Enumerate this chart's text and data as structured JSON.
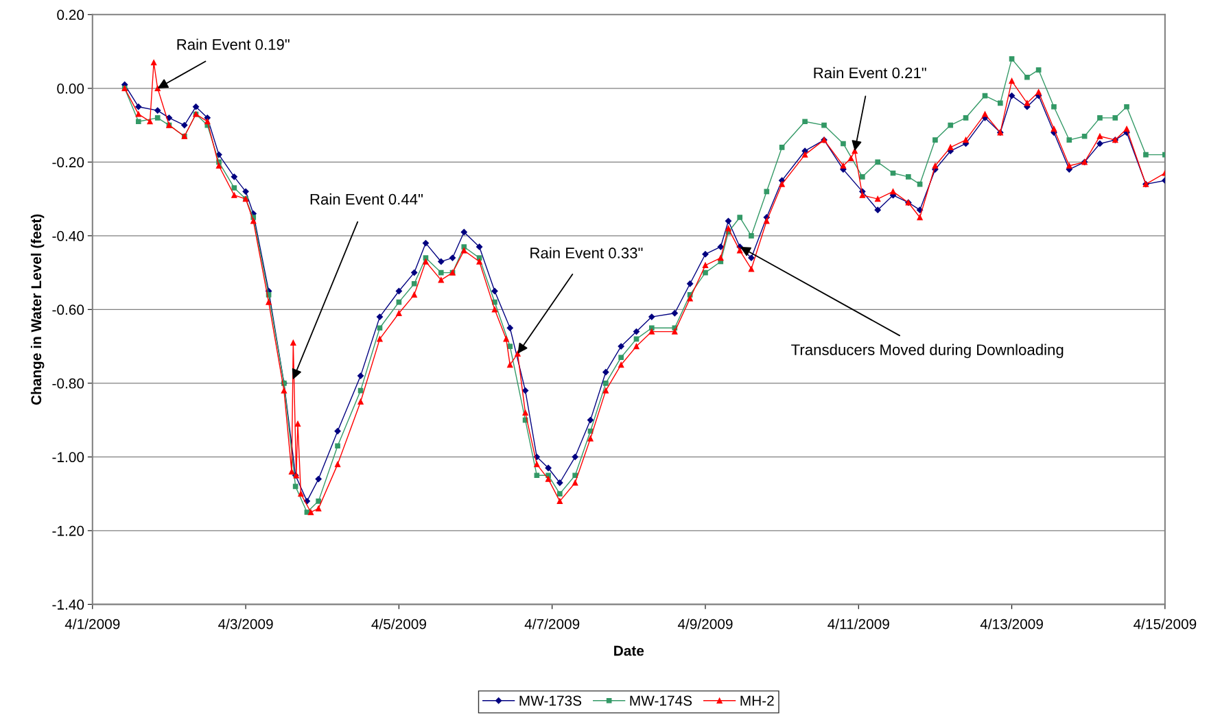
{
  "chart_data": {
    "type": "line",
    "xlabel": "Date",
    "ylabel": "Change in Water Level (feet)",
    "xlim": [
      "2009-04-01",
      "2009-04-15"
    ],
    "xticks": [
      {
        "value": "2009-04-01",
        "label": "4/1/2009"
      },
      {
        "value": "2009-04-03",
        "label": "4/3/2009"
      },
      {
        "value": "2009-04-05",
        "label": "4/5/2009"
      },
      {
        "value": "2009-04-07",
        "label": "4/7/2009"
      },
      {
        "value": "2009-04-09",
        "label": "4/9/2009"
      },
      {
        "value": "2009-04-11",
        "label": "4/11/2009"
      },
      {
        "value": "2009-04-13",
        "label": "4/13/2009"
      },
      {
        "value": "2009-04-15",
        "label": "4/15/2009"
      }
    ],
    "ylim": [
      -1.4,
      0.2
    ],
    "yticks": [
      {
        "value": 0.2,
        "label": "0.20"
      },
      {
        "value": 0.0,
        "label": "0.00"
      },
      {
        "value": -0.2,
        "label": "-0.20"
      },
      {
        "value": -0.4,
        "label": "-0.40"
      },
      {
        "value": -0.6,
        "label": "-0.60"
      },
      {
        "value": -0.8,
        "label": "-0.80"
      },
      {
        "value": -1.0,
        "label": "-1.00"
      },
      {
        "value": -1.2,
        "label": "-1.20"
      },
      {
        "value": -1.4,
        "label": "-1.40"
      }
    ],
    "grid": "y",
    "legend": "bottom",
    "line_style": "solid",
    "x": [
      "2009-04-01T10:05",
      "2009-04-01T14:24",
      "2009-04-01T20:24",
      "2009-04-02T00:00",
      "2009-04-02T04:48",
      "2009-04-02T08:24",
      "2009-04-02T12:00",
      "2009-04-02T15:36",
      "2009-04-02T20:24",
      "2009-04-03T00:00",
      "2009-04-03T02:24",
      "2009-04-03T07:12",
      "2009-04-03T12:00",
      "2009-04-03T15:36",
      "2009-04-03T19:12",
      "2009-04-03T22:48",
      "2009-04-04T04:48",
      "2009-04-04T12:00",
      "2009-04-04T18:00",
      "2009-04-05T00:00",
      "2009-04-05T04:48",
      "2009-04-05T08:24",
      "2009-04-05T13:12",
      "2009-04-05T16:48",
      "2009-04-05T20:24",
      "2009-04-06T01:12",
      "2009-04-06T06:00",
      "2009-04-06T10:48",
      "2009-04-06T15:36",
      "2009-04-06T19:12",
      "2009-04-06T22:48",
      "2009-04-07T02:24",
      "2009-04-07T07:12",
      "2009-04-07T12:00",
      "2009-04-07T16:48",
      "2009-04-07T21:36",
      "2009-04-08T02:24",
      "2009-04-08T07:12",
      "2009-04-08T14:24",
      "2009-04-08T19:12",
      "2009-04-09T00:00",
      "2009-04-09T04:48",
      "2009-04-09T07:12",
      "2009-04-09T10:48",
      "2009-04-09T14:24",
      "2009-04-09T19:12",
      "2009-04-10T00:00",
      "2009-04-10T07:12",
      "2009-04-10T13:12",
      "2009-04-10T19:12",
      "2009-04-11T01:12",
      "2009-04-11T06:00",
      "2009-04-11T10:48",
      "2009-04-11T15:36",
      "2009-04-11T19:12",
      "2009-04-12T00:00",
      "2009-04-12T04:48",
      "2009-04-12T09:36",
      "2009-04-12T15:36",
      "2009-04-12T20:24",
      "2009-04-13T00:00",
      "2009-04-13T04:48",
      "2009-04-13T08:24",
      "2009-04-13T13:12",
      "2009-04-13T18:00",
      "2009-04-13T22:48",
      "2009-04-14T03:36",
      "2009-04-14T08:24",
      "2009-04-14T12:00",
      "2009-04-14T18:00",
      "2009-04-15T00:00"
    ],
    "series": [
      {
        "name": "MW-173S",
        "color": "#000080",
        "marker": "diamond",
        "values": [
          0.01,
          -0.05,
          -0.06,
          -0.08,
          -0.1,
          -0.05,
          -0.08,
          -0.18,
          -0.24,
          -0.28,
          -0.34,
          -0.55,
          -0.8,
          -1.05,
          -1.12,
          -1.06,
          -0.93,
          -0.78,
          -0.62,
          -0.55,
          -0.5,
          -0.42,
          -0.47,
          -0.46,
          -0.39,
          -0.43,
          -0.55,
          -0.65,
          -0.82,
          -1.0,
          -1.03,
          -1.07,
          -1.0,
          -0.9,
          -0.77,
          -0.7,
          -0.66,
          -0.62,
          -0.61,
          -0.53,
          -0.45,
          -0.43,
          -0.36,
          -0.43,
          -0.46,
          -0.35,
          -0.25,
          -0.17,
          -0.14,
          -0.22,
          -0.28,
          -0.33,
          -0.29,
          -0.31,
          -0.33,
          -0.22,
          -0.17,
          -0.15,
          -0.08,
          -0.12,
          -0.02,
          -0.05,
          -0.02,
          -0.12,
          -0.22,
          -0.2,
          -0.15,
          -0.14,
          -0.12,
          -0.26,
          -0.25
        ]
      },
      {
        "name": "MW-174S",
        "color": "#339966",
        "marker": "square",
        "values": [
          0.0,
          -0.09,
          -0.08,
          -0.1,
          -0.13,
          -0.07,
          -0.1,
          -0.2,
          -0.27,
          -0.3,
          -0.35,
          -0.56,
          -0.8,
          -1.08,
          -1.15,
          -1.12,
          -0.97,
          -0.82,
          -0.65,
          -0.58,
          -0.53,
          -0.46,
          -0.5,
          -0.5,
          -0.43,
          -0.46,
          -0.58,
          -0.7,
          -0.9,
          -1.05,
          -1.05,
          -1.1,
          -1.05,
          -0.93,
          -0.8,
          -0.73,
          -0.68,
          -0.65,
          -0.65,
          -0.56,
          -0.5,
          -0.47,
          -0.39,
          -0.35,
          -0.4,
          -0.28,
          -0.16,
          -0.09,
          -0.1,
          -0.15,
          -0.24,
          -0.2,
          -0.23,
          -0.24,
          -0.26,
          -0.14,
          -0.1,
          -0.08,
          -0.02,
          -0.04,
          0.08,
          0.03,
          0.05,
          -0.05,
          -0.14,
          -0.13,
          -0.08,
          -0.08,
          -0.05,
          -0.18,
          -0.18
        ]
      },
      {
        "name": "MH-2",
        "color": "#ff0000",
        "marker": "triangle",
        "x": [
          "2009-04-01T10:05",
          "2009-04-01T14:24",
          "2009-04-01T18:00",
          "2009-04-01T19:12",
          "2009-04-01T20:24",
          "2009-04-02T00:00",
          "2009-04-02T04:48",
          "2009-04-02T08:24",
          "2009-04-02T12:00",
          "2009-04-02T15:36",
          "2009-04-02T20:24",
          "2009-04-03T00:00",
          "2009-04-03T02:24",
          "2009-04-03T07:12",
          "2009-04-03T12:00",
          "2009-04-03T14:24",
          "2009-04-03T14:53",
          "2009-04-03T15:50",
          "2009-04-03T16:19",
          "2009-04-03T17:17",
          "2009-04-03T20:24",
          "2009-04-03T22:48",
          "2009-04-04T04:48",
          "2009-04-04T12:00",
          "2009-04-04T18:00",
          "2009-04-05T00:00",
          "2009-04-05T04:48",
          "2009-04-05T08:24",
          "2009-04-05T13:12",
          "2009-04-05T16:48",
          "2009-04-05T20:24",
          "2009-04-06T01:12",
          "2009-04-06T06:00",
          "2009-04-06T09:36",
          "2009-04-06T10:48",
          "2009-04-06T13:12",
          "2009-04-06T15:36",
          "2009-04-06T19:12",
          "2009-04-06T22:48",
          "2009-04-07T02:24",
          "2009-04-07T07:12",
          "2009-04-07T12:00",
          "2009-04-07T16:48",
          "2009-04-07T21:36",
          "2009-04-08T02:24",
          "2009-04-08T07:12",
          "2009-04-08T14:24",
          "2009-04-08T19:12",
          "2009-04-09T00:00",
          "2009-04-09T04:48",
          "2009-04-09T07:12",
          "2009-04-09T10:48",
          "2009-04-09T14:24",
          "2009-04-09T19:12",
          "2009-04-10T00:00",
          "2009-04-10T07:12",
          "2009-04-10T13:12",
          "2009-04-10T19:12",
          "2009-04-10T21:36",
          "2009-04-10T22:48",
          "2009-04-11T01:12",
          "2009-04-11T06:00",
          "2009-04-11T10:48",
          "2009-04-11T15:36",
          "2009-04-11T19:12",
          "2009-04-12T00:00",
          "2009-04-12T04:48",
          "2009-04-12T09:36",
          "2009-04-12T15:36",
          "2009-04-12T20:24",
          "2009-04-13T00:00",
          "2009-04-13T04:48",
          "2009-04-13T08:24",
          "2009-04-13T13:12",
          "2009-04-13T18:00",
          "2009-04-13T22:48",
          "2009-04-14T03:36",
          "2009-04-14T08:24",
          "2009-04-14T12:00",
          "2009-04-14T18:00",
          "2009-04-15T00:00"
        ],
        "values": [
          0.0,
          -0.07,
          -0.09,
          0.07,
          0.0,
          -0.1,
          -0.13,
          -0.07,
          -0.09,
          -0.21,
          -0.29,
          -0.3,
          -0.36,
          -0.58,
          -0.82,
          -1.04,
          -0.69,
          -1.05,
          -0.91,
          -1.1,
          -1.15,
          -1.14,
          -1.02,
          -0.85,
          -0.68,
          -0.61,
          -0.56,
          -0.47,
          -0.52,
          -0.5,
          -0.44,
          -0.47,
          -0.6,
          -0.68,
          -0.75,
          -0.72,
          -0.88,
          -1.02,
          -1.06,
          -1.12,
          -1.07,
          -0.95,
          -0.82,
          -0.75,
          -0.7,
          -0.66,
          -0.66,
          -0.57,
          -0.48,
          -0.46,
          -0.38,
          -0.44,
          -0.49,
          -0.36,
          -0.26,
          -0.18,
          -0.14,
          -0.21,
          -0.19,
          -0.17,
          -0.29,
          -0.3,
          -0.28,
          -0.31,
          -0.35,
          -0.21,
          -0.16,
          -0.14,
          -0.07,
          -0.12,
          0.02,
          -0.04,
          -0.01,
          -0.11,
          -0.21,
          -0.2,
          -0.13,
          -0.14,
          -0.11,
          -0.26,
          -0.23
        ]
      }
    ],
    "annotations": [
      {
        "text": "Rain Event 0.19\"",
        "x": "2009-04-01T20:24",
        "y": 0.0
      },
      {
        "text": "Rain Event 0.44\"",
        "x": "2009-04-03T14:48",
        "y": -0.79
      },
      {
        "text": "Rain Event 0.33\"",
        "x": "2009-04-06T13:12",
        "y": -0.72
      },
      {
        "text": "Transducers Moved during Downloading",
        "x": "2009-04-09T10:54",
        "y": -0.43
      },
      {
        "text": "Rain Event 0.21\"",
        "x": "2009-04-10T22:48",
        "y": -0.17
      }
    ]
  }
}
